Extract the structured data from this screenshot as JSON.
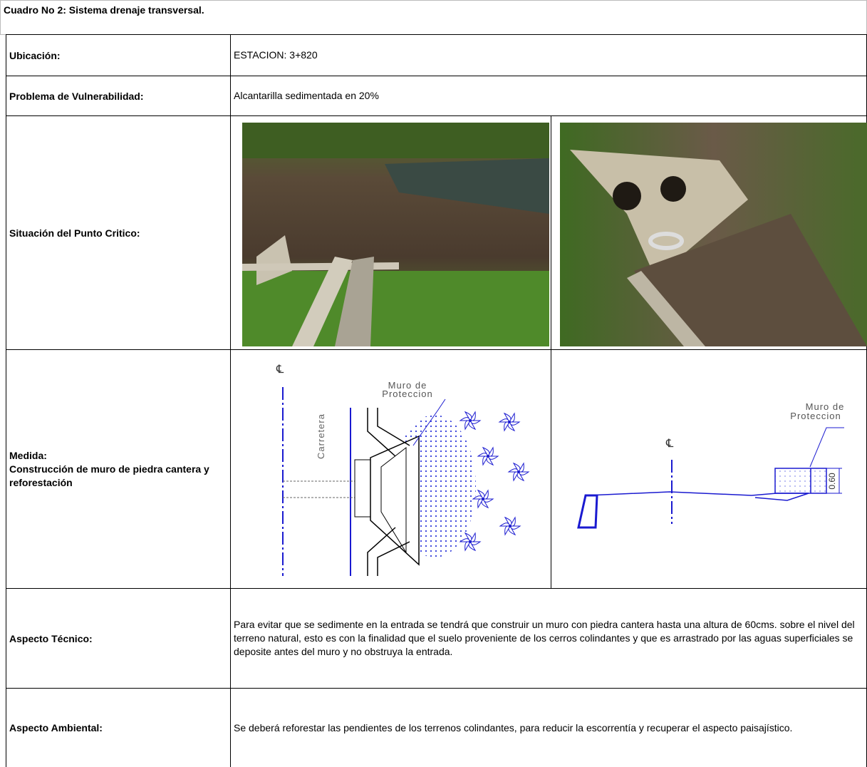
{
  "title": "Cuadro No 2: Sistema drenaje transversal.",
  "rows": [
    {
      "label": "Ubicación:",
      "content": "ESTACION: 3+820"
    },
    {
      "label": "Problema de Vulnerabilidad:",
      "content": "Alcantarilla sedimentada en 20%"
    },
    {
      "label": "Situación del Punto Critico:"
    },
    {
      "label": "Medida:",
      "sublabel": "Construcción de muro de piedra cantera y reforestación"
    },
    {
      "label": "Aspecto Técnico:",
      "content": "Para evitar que se sedimente en la entrada se tendrá que construir un muro con piedra cantera hasta una altura de 60cms. sobre el nivel del terreno natural, esto es con la finalidad que el suelo proveniente de los cerros colindantes y que es arrastrado por las aguas superficiales se deposite antes del muro y no obstruya la entrada."
    },
    {
      "label": "Aspecto Ambiental:",
      "content": "Se deberá reforestar las pendientes de los terrenos colindantes, para reducir la escorrentía y recuperar el aspecto paisajístico."
    }
  ],
  "drawings": {
    "plan": {
      "centerline": "℄",
      "wall_label": [
        "Muro de",
        "Proteccion"
      ],
      "road_label": "Carretera"
    },
    "section": {
      "centerline": "℄",
      "wall_label": [
        "Muro de",
        "Proteccion"
      ],
      "dimension": "0.60"
    }
  }
}
